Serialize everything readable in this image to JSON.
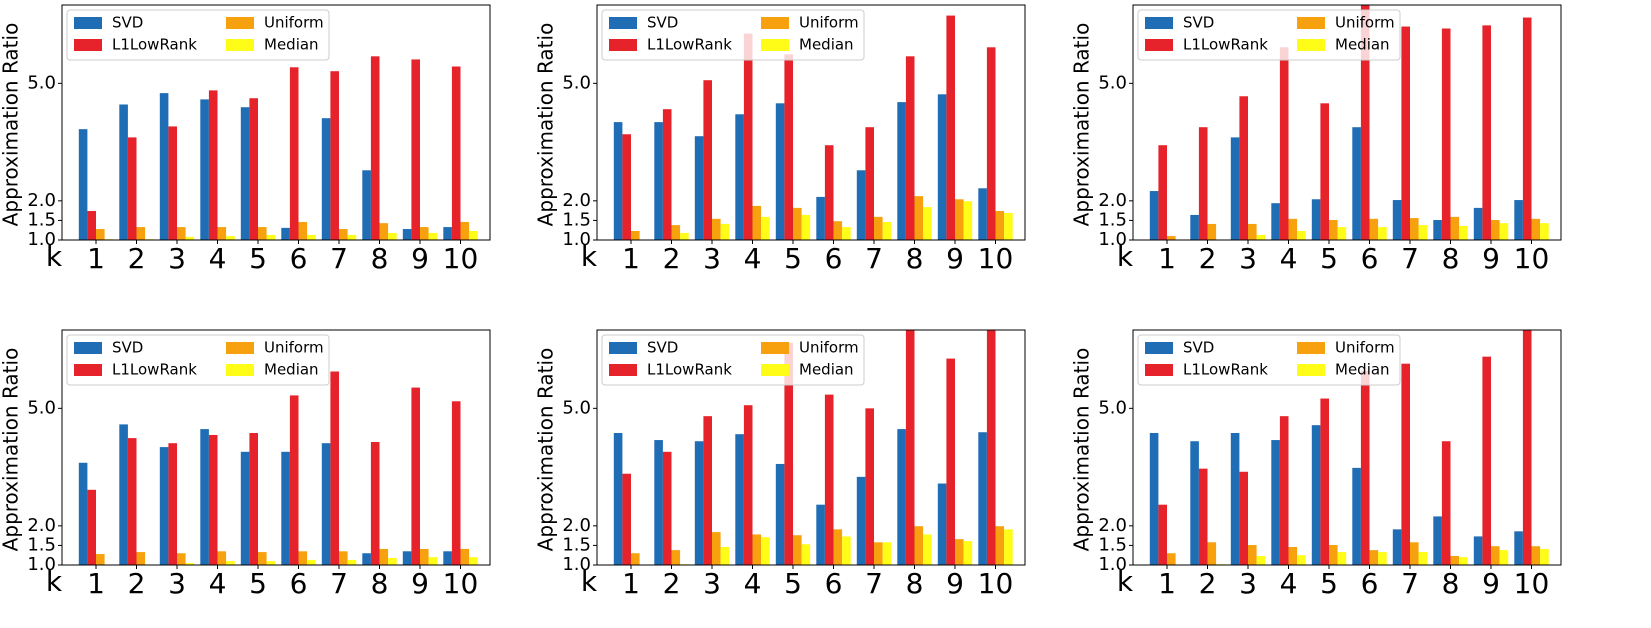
{
  "chart_data": [
    {
      "type": "bar",
      "y_label": "Approximation Ratio",
      "x_label": "k",
      "categories": [
        "1",
        "2",
        "3",
        "4",
        "5",
        "6",
        "7",
        "8",
        "9",
        "10"
      ],
      "series": [
        {
          "name": "SVD",
          "color": "#1f6db5",
          "values": [
            3.83,
            4.46,
            4.75,
            4.59,
            4.39,
            1.31,
            4.11,
            2.78,
            1.28,
            1.33
          ]
        },
        {
          "name": "L1LowRank",
          "color": "#e6232b",
          "values": [
            1.74,
            3.62,
            3.9,
            4.82,
            4.62,
            5.41,
            5.31,
            5.69,
            5.61,
            5.43
          ]
        },
        {
          "name": "Uniform",
          "color": "#f7a10f",
          "values": [
            1.28,
            1.33,
            1.33,
            1.33,
            1.33,
            1.46,
            1.28,
            1.43,
            1.33,
            1.46
          ]
        },
        {
          "name": "Median",
          "color": "#fffc17",
          "values": [
            1.02,
            1.02,
            1.08,
            1.1,
            1.13,
            1.13,
            1.13,
            1.18,
            1.18,
            1.23
          ]
        }
      ],
      "ylim": [
        1,
        7
      ],
      "yticks": [
        {
          "value": 1,
          "label": "1.0"
        },
        1.5,
        {
          "value": 2,
          "label": "2.0"
        },
        {
          "value": 5,
          "label": "5.0"
        }
      ],
      "legend": "upper left"
    },
    {
      "type": "bar",
      "y_label": "Approximation Ratio",
      "x_label": "k",
      "categories": [
        "1",
        "2",
        "3",
        "4",
        "5",
        "6",
        "7",
        "8",
        "9",
        "10"
      ],
      "series": [
        {
          "name": "SVD",
          "color": "#1f6db5",
          "values": [
            4.01,
            4.01,
            3.65,
            4.21,
            4.49,
            2.1,
            2.78,
            4.52,
            4.72,
            2.32
          ]
        },
        {
          "name": "L1LowRank",
          "color": "#e6232b",
          "values": [
            3.7,
            4.34,
            5.08,
            6.27,
            5.74,
            3.42,
            3.88,
            5.69,
            6.73,
            5.92
          ]
        },
        {
          "name": "Uniform",
          "color": "#f7a10f",
          "values": [
            1.23,
            1.38,
            1.54,
            1.87,
            1.82,
            1.48,
            1.59,
            2.12,
            2.04,
            1.74
          ]
        },
        {
          "name": "Median",
          "color": "#fffc17",
          "values": [
            1.0,
            1.18,
            1.41,
            1.59,
            1.64,
            1.33,
            1.46,
            1.84,
            1.99,
            1.69
          ]
        }
      ],
      "ylim": [
        1,
        7
      ],
      "yticks": [
        {
          "value": 1,
          "label": "1.0"
        },
        1.5,
        {
          "value": 2,
          "label": "2.0"
        },
        {
          "value": 5,
          "label": "5.0"
        }
      ],
      "legend": "upper left"
    },
    {
      "type": "bar",
      "y_label": "Approximation Ratio",
      "x_label": "k",
      "categories": [
        "1",
        "2",
        "3",
        "4",
        "5",
        "6",
        "7",
        "8",
        "9",
        "10"
      ],
      "series": [
        {
          "name": "SVD",
          "color": "#1f6db5",
          "values": [
            2.25,
            1.64,
            3.62,
            1.94,
            2.04,
            3.88,
            2.02,
            1.51,
            1.82,
            2.02
          ]
        },
        {
          "name": "L1LowRank",
          "color": "#e6232b",
          "values": [
            3.42,
            3.88,
            4.67,
            5.92,
            4.49,
            7.2,
            6.45,
            6.4,
            6.48,
            6.68
          ]
        },
        {
          "name": "Uniform",
          "color": "#f7a10f",
          "values": [
            1.1,
            1.41,
            1.41,
            1.54,
            1.51,
            1.54,
            1.56,
            1.59,
            1.51,
            1.54
          ]
        },
        {
          "name": "Median",
          "color": "#fffc17",
          "values": [
            1.0,
            1.0,
            1.13,
            1.23,
            1.33,
            1.33,
            1.38,
            1.36,
            1.43,
            1.43
          ]
        }
      ],
      "ylim": [
        1,
        7
      ],
      "yticks": [
        {
          "value": 1,
          "label": "1.0"
        },
        1.5,
        {
          "value": 2,
          "label": "2.0"
        },
        {
          "value": 5,
          "label": "5.0"
        }
      ],
      "legend": "upper left"
    },
    {
      "type": "bar",
      "y_label": "Approximation Ratio",
      "x_label": "k",
      "categories": [
        "1",
        "2",
        "3",
        "4",
        "5",
        "6",
        "7",
        "8",
        "9",
        "10"
      ],
      "series": [
        {
          "name": "SVD",
          "color": "#1f6db5",
          "values": [
            3.61,
            4.59,
            4.01,
            4.47,
            3.89,
            3.89,
            4.11,
            1.3,
            1.35,
            1.35
          ]
        },
        {
          "name": "L1LowRank",
          "color": "#e6232b",
          "values": [
            2.92,
            4.24,
            4.11,
            4.32,
            4.37,
            5.33,
            5.94,
            4.14,
            5.53,
            5.18
          ]
        },
        {
          "name": "Uniform",
          "color": "#f7a10f",
          "values": [
            1.28,
            1.33,
            1.3,
            1.35,
            1.33,
            1.35,
            1.35,
            1.41,
            1.41,
            1.41
          ]
        },
        {
          "name": "Median",
          "color": "#fffc17",
          "values": [
            1.0,
            1.0,
            1.05,
            1.1,
            1.1,
            1.13,
            1.13,
            1.18,
            1.2,
            1.2
          ]
        }
      ],
      "ylim": [
        1,
        7
      ],
      "yticks": [
        {
          "value": 1,
          "label": "1.0"
        },
        1.5,
        {
          "value": 2,
          "label": "2.0"
        },
        {
          "value": 5,
          "label": "5.0"
        }
      ],
      "legend": "upper left"
    },
    {
      "type": "bar",
      "y_label": "Approximation Ratio",
      "x_label": "k",
      "categories": [
        "1",
        "2",
        "3",
        "4",
        "5",
        "6",
        "7",
        "8",
        "9",
        "10"
      ],
      "series": [
        {
          "name": "SVD",
          "color": "#1f6db5",
          "values": [
            4.37,
            4.19,
            4.16,
            4.34,
            3.58,
            2.54,
            3.25,
            4.47,
            3.08,
            4.39
          ]
        },
        {
          "name": "L1LowRank",
          "color": "#e6232b",
          "values": [
            3.33,
            3.89,
            4.8,
            5.08,
            6.67,
            5.35,
            5.0,
            7.2,
            6.27,
            7.2
          ]
        },
        {
          "name": "Uniform",
          "color": "#f7a10f",
          "values": [
            1.3,
            1.38,
            1.84,
            1.78,
            1.76,
            1.91,
            1.58,
            1.99,
            1.66,
            1.99
          ]
        },
        {
          "name": "Median",
          "color": "#fffc17",
          "values": [
            1.0,
            1.02,
            1.46,
            1.71,
            1.53,
            1.73,
            1.58,
            1.78,
            1.61,
            1.91
          ]
        }
      ],
      "ylim": [
        1,
        7
      ],
      "yticks": [
        {
          "value": 1,
          "label": "1.0"
        },
        1.5,
        {
          "value": 2,
          "label": "2.0"
        },
        {
          "value": 5,
          "label": "5.0"
        }
      ],
      "legend": "upper left"
    },
    {
      "type": "bar",
      "y_label": "Approximation Ratio",
      "x_label": "k",
      "categories": [
        "1",
        "2",
        "3",
        "4",
        "5",
        "6",
        "7",
        "8",
        "9",
        "10"
      ],
      "series": [
        {
          "name": "SVD",
          "color": "#1f6db5",
          "values": [
            4.37,
            4.16,
            4.37,
            4.19,
            4.57,
            3.48,
            1.91,
            2.24,
            1.73,
            1.86
          ]
        },
        {
          "name": "L1LowRank",
          "color": "#e6232b",
          "values": [
            2.54,
            3.46,
            3.38,
            4.8,
            5.25,
            5.96,
            6.14,
            4.16,
            6.32,
            7.2
          ]
        },
        {
          "name": "Uniform",
          "color": "#f7a10f",
          "values": [
            1.3,
            1.58,
            1.51,
            1.46,
            1.51,
            1.38,
            1.58,
            1.23,
            1.48,
            1.48
          ]
        },
        {
          "name": "Median",
          "color": "#fffc17",
          "values": [
            1.0,
            1.02,
            1.23,
            1.25,
            1.33,
            1.33,
            1.33,
            1.2,
            1.38,
            1.41
          ]
        }
      ],
      "ylim": [
        1,
        7
      ],
      "yticks": [
        {
          "value": 1,
          "label": "1.0"
        },
        1.5,
        {
          "value": 2,
          "label": "2.0"
        },
        {
          "value": 5,
          "label": "5.0"
        }
      ],
      "legend": "upper left"
    }
  ]
}
